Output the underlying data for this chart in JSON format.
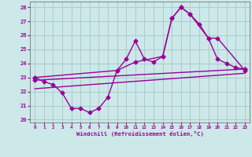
{
  "xlabel": "Windchill (Refroidissement éolien,°C)",
  "background_color": "#cce8e8",
  "grid_color": "#aacccc",
  "line_color": "#990099",
  "xlim": [
    -0.5,
    23.5
  ],
  "ylim": [
    19.8,
    28.4
  ],
  "yticks": [
    20,
    21,
    22,
    23,
    24,
    25,
    26,
    27,
    28
  ],
  "xticks": [
    0,
    1,
    2,
    3,
    4,
    5,
    6,
    7,
    8,
    9,
    10,
    11,
    12,
    13,
    14,
    15,
    16,
    17,
    18,
    19,
    20,
    21,
    22,
    23
  ],
  "series1_x": [
    0,
    1,
    2,
    3,
    4,
    5,
    6,
    7,
    8,
    9,
    10,
    11,
    12,
    13,
    14,
    15,
    16,
    17,
    18,
    19,
    20,
    21,
    22,
    23
  ],
  "series1_y": [
    23.0,
    22.7,
    22.5,
    21.9,
    20.8,
    20.8,
    20.5,
    20.8,
    21.6,
    23.5,
    24.3,
    25.6,
    24.3,
    24.1,
    24.5,
    27.2,
    28.0,
    27.5,
    26.8,
    25.8,
    24.3,
    24.0,
    23.7,
    23.6
  ],
  "series2_x": [
    0,
    9,
    11,
    14,
    15,
    16,
    17,
    19,
    20,
    23
  ],
  "series2_y": [
    23.0,
    23.5,
    24.1,
    24.5,
    27.2,
    28.0,
    27.5,
    25.8,
    25.8,
    23.5
  ],
  "series3_x": [
    0,
    23
  ],
  "series3_y": [
    22.8,
    23.6
  ],
  "series4_x": [
    0,
    23
  ],
  "series4_y": [
    22.2,
    23.3
  ],
  "marker": "D",
  "markersize": 2.5,
  "linewidth": 1.0
}
